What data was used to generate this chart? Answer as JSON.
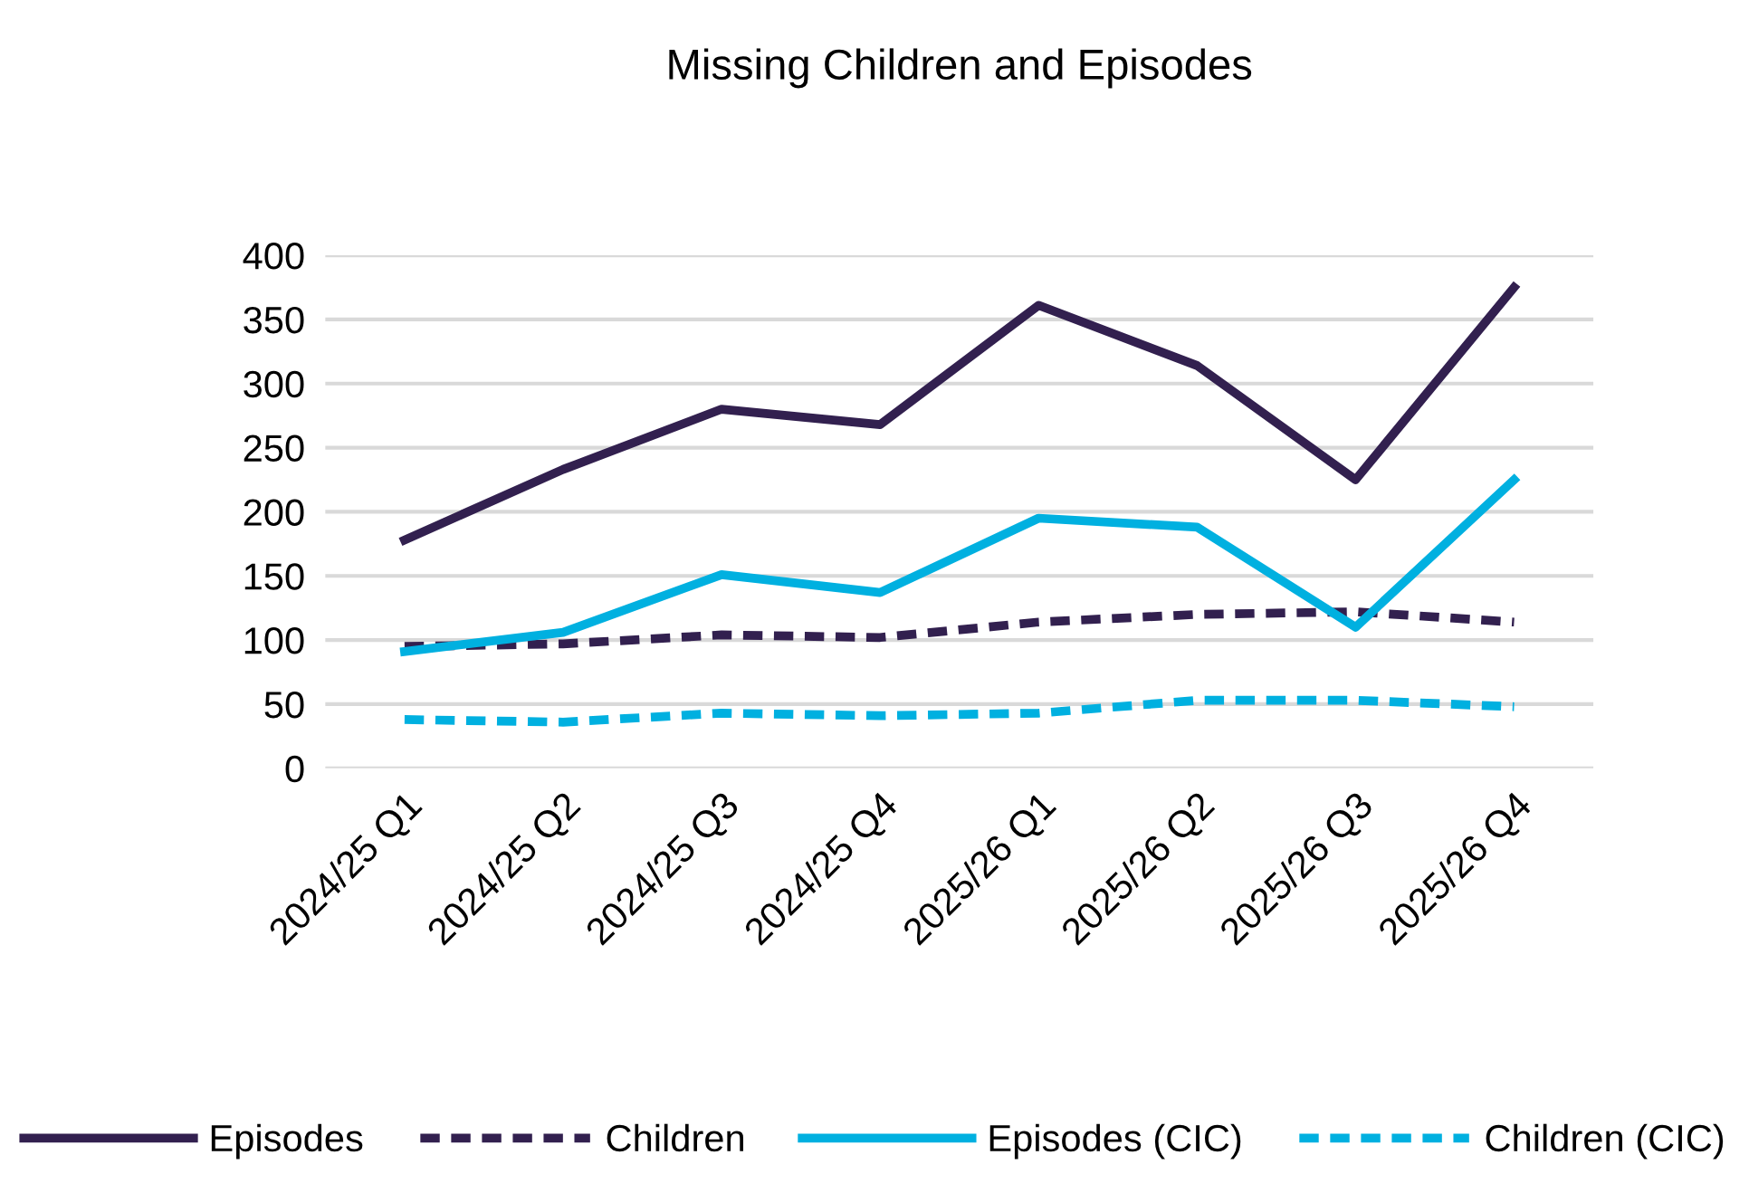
{
  "chart_data": {
    "type": "line",
    "title": "Missing Children and Episodes",
    "categories": [
      "2024/25 Q1",
      "2024/25 Q2",
      "2024/25 Q3",
      "2024/25 Q4",
      "2025/26 Q1",
      "2025/26 Q2",
      "2025/26 Q3",
      "2025/26 Q4"
    ],
    "series": [
      {
        "name": "Episodes",
        "color": "#32204f",
        "line_style": "solid",
        "values": [
          178,
          233,
          280,
          268,
          361,
          314,
          225,
          375
        ]
      },
      {
        "name": "Children",
        "color": "#32204f",
        "line_style": "dashed",
        "values": [
          95,
          97,
          104,
          102,
          114,
          120,
          122,
          114
        ]
      },
      {
        "name": "Episodes (CIC)",
        "color": "#00b0e0",
        "line_style": "solid",
        "values": [
          91,
          106,
          151,
          137,
          195,
          188,
          110,
          225
        ]
      },
      {
        "name": "Children (CIC)",
        "color": "#00b0e0",
        "line_style": "dashed",
        "values": [
          38,
          36,
          43,
          41,
          43,
          53,
          53,
          48
        ]
      }
    ],
    "ylim": [
      0,
      400
    ],
    "yticks": [
      0,
      50,
      100,
      150,
      200,
      250,
      300,
      350,
      400
    ],
    "grid": "y",
    "legend": "bottom",
    "marker": "none"
  }
}
